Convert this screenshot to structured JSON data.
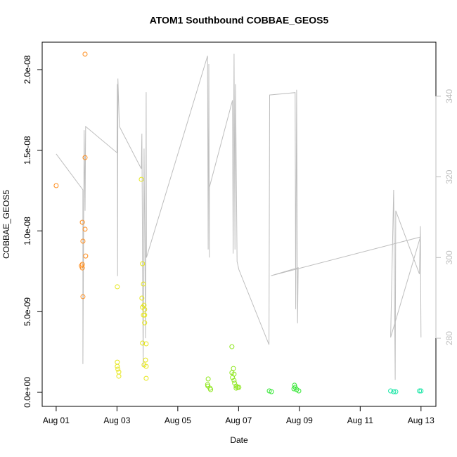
{
  "chart_data": {
    "type": "scatter",
    "title": "ATOM1 Southbound COBBAE_GEOS5",
    "x_label": "Date",
    "y_label": "COBBAE_GEOS5",
    "xlim": [
      -0.46,
      12.49
    ],
    "xticks": [
      {
        "value": 0,
        "label": "Aug 01"
      },
      {
        "value": 2,
        "label": "Aug 03"
      },
      {
        "value": 4,
        "label": "Aug 05"
      },
      {
        "value": 6,
        "label": "Aug 07"
      },
      {
        "value": 8,
        "label": "Aug 09"
      },
      {
        "value": 10,
        "label": "Aug 11"
      },
      {
        "value": 12,
        "label": "Aug 13"
      }
    ],
    "ylim": [
      -8.7e-10,
      2.17e-08
    ],
    "yticks": [
      {
        "value": 0,
        "label": "0.0e+00"
      },
      {
        "value": 5e-09,
        "label": "5.0e-09"
      },
      {
        "value": 1e-08,
        "label": "1.0e-08"
      },
      {
        "value": 1.5e-08,
        "label": "1.5e-08"
      },
      {
        "value": 2e-08,
        "label": "2.0e-08"
      }
    ],
    "y2lim": [
      263.1,
      353.4
    ],
    "y2ticks": [
      280,
      300,
      320,
      340
    ],
    "y2_color": "#bebebe",
    "series": [
      {
        "type": "line",
        "axis": "y2",
        "color": "#bebebe",
        "x": [
          0,
          0.88,
          0.88,
          0.92,
          0.95,
          0.97,
          2.0,
          2.01,
          2.02,
          2.03,
          2.08,
          2.8,
          2.82,
          2.86,
          2.89,
          2.94,
          2.96,
          2.97,
          4.98,
          5.0,
          5.02,
          5.04,
          5.04,
          5.8,
          5.82,
          5.85,
          5.88,
          5.9,
          5.95,
          6.01,
          7.0,
          7.02,
          7.86,
          7.88,
          7.91,
          7.94,
          7.96,
          7.07,
          11.98,
          11.0,
          11.1,
          11.15,
          11.17,
          11.95,
          11.98,
          12.0
        ],
        "values": [
          325.7,
          316.8,
          273.6,
          331.6,
          311.6,
          332.5,
          326.0,
          343.0,
          295.4,
          344.4,
          332.5,
          322.0,
          330.7,
          273.0,
          327.0,
          280.0,
          341.0,
          300.0,
          350.0,
          302.0,
          348.0,
          300.0,
          317.4,
          339.0,
          301.0,
          350.5,
          302.0,
          343.0,
          299.0,
          297.0,
          278.4,
          340.3,
          340.9,
          287.2,
          341.6,
          283.7,
          297.5,
          295.5,
          305.1,
          280.2,
          316.8,
          269.7,
          311.6,
          295.9,
          307.8,
          280.2
        ]
      },
      {
        "type": "scatter",
        "color": "#ff8c1a",
        "x": [
          0,
          0.95,
          0.95,
          0.86,
          0.95,
          0.88,
          0.97,
          0.86,
          0.86,
          0.83,
          0.88
        ],
        "values": [
          1.281e-08,
          2.096e-08,
          1.455e-08,
          1.054e-08,
          1.011e-08,
          9.37e-09,
          8.45e-09,
          7.93e-09,
          7.71e-09,
          7.84e-09,
          5.93e-09
        ]
      },
      {
        "type": "scatter",
        "color": "#e6e619",
        "x": [
          2.01,
          2.01,
          2.01,
          2.03,
          2.06,
          2.06,
          2.8,
          2.84,
          2.87,
          2.82,
          2.89,
          2.84,
          2.91,
          2.87,
          2.91,
          2.91,
          2.84,
          2.96,
          2.94,
          2.89,
          2.96,
          2.96
        ],
        "values": [
          6.54e-09,
          1.87e-09,
          1.61e-09,
          1.44e-09,
          1.26e-09,
          1e-09,
          1.32e-08,
          7.97e-09,
          6.71e-09,
          5.84e-09,
          5.4e-09,
          5.27e-09,
          5.14e-09,
          4.79e-09,
          4.79e-09,
          4.31e-09,
          3.05e-09,
          3.01e-09,
          2e-09,
          1.7e-09,
          1.61e-09,
          8.7e-10
        ]
      },
      {
        "type": "scatter",
        "color": "#8ce619",
        "x": [
          5.0,
          4.98,
          4.99,
          5.06,
          5.08,
          5.78,
          5.83,
          5.78,
          5.85,
          5.8,
          5.85,
          5.87,
          5.92,
          5.97,
          6.01,
          5.92
        ],
        "values": [
          8.3e-10,
          4.8e-10,
          3.9e-10,
          2.6e-10,
          1.7e-10,
          2.83e-09,
          1.48e-09,
          1.22e-09,
          1.13e-09,
          9.2e-10,
          7.4e-10,
          5.7e-10,
          3.9e-10,
          3.1e-10,
          3.1e-10,
          2.6e-10
        ]
      },
      {
        "type": "scatter",
        "color": "#33e633",
        "x": [
          7.01,
          7.08,
          7.84,
          7.86,
          7.91,
          7.98,
          7.82
        ],
        "values": [
          9e-11,
          4e-11,
          4.4e-10,
          3.1e-10,
          1.7e-10,
          9e-11,
          2.2e-10
        ]
      },
      {
        "type": "scatter",
        "color": "#19e6a6",
        "x": [
          11.0,
          11.1,
          11.17,
          11.95,
          12.0
        ],
        "values": [
          9e-11,
          4e-11,
          4e-11,
          9e-11,
          9e-11
        ]
      }
    ]
  }
}
